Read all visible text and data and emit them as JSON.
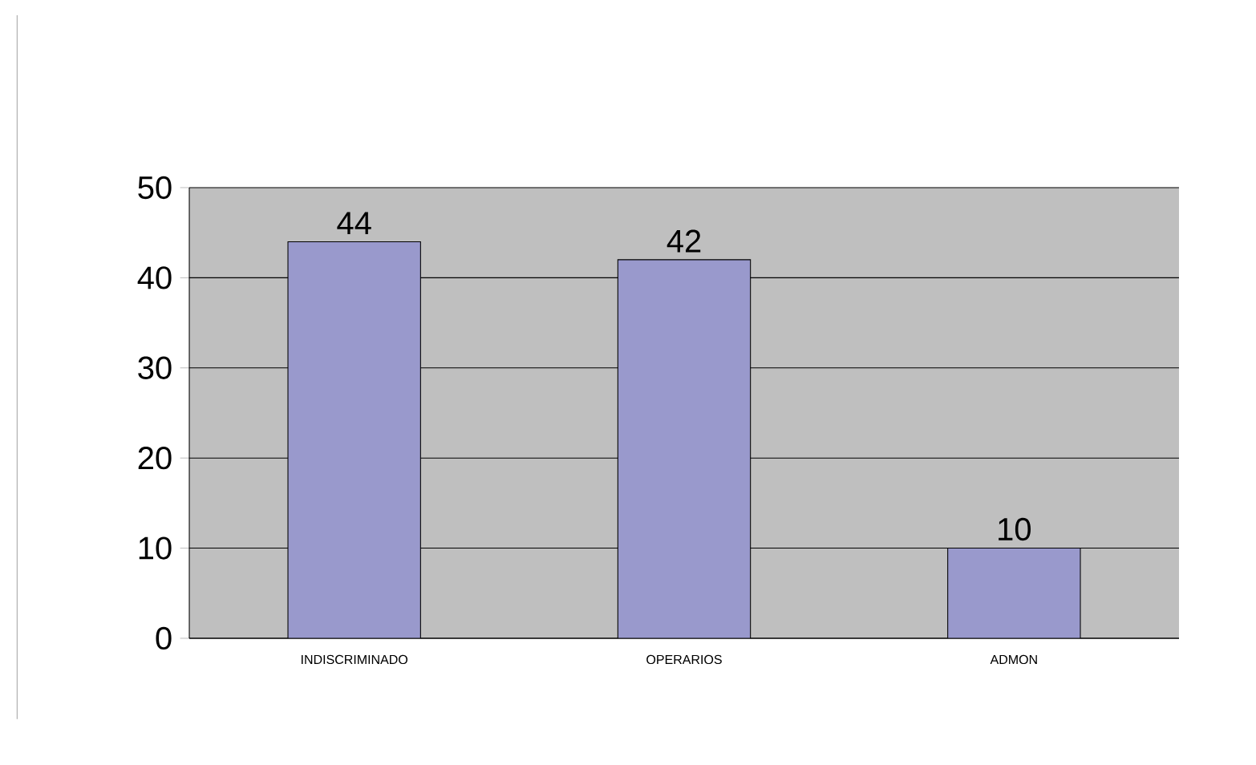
{
  "chart_data": {
    "type": "bar",
    "categories": [
      "INDISCRIMINADO",
      "OPERARIOS",
      "ADMON"
    ],
    "values": [
      44,
      42,
      10
    ],
    "color": "#9999cc",
    "ylim": [
      0,
      50
    ],
    "yticks": [
      0,
      10,
      20,
      30,
      40,
      50
    ],
    "grid": "y",
    "data_labels": true
  }
}
